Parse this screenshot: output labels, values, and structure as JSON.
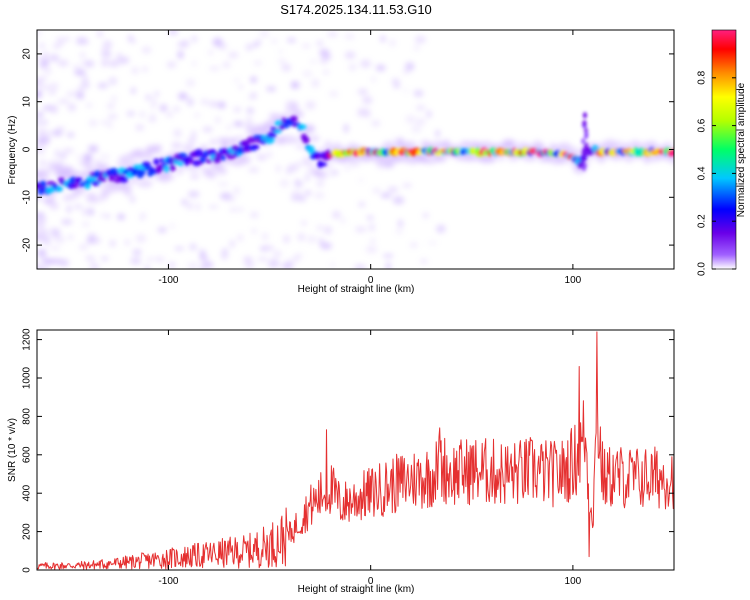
{
  "title": "S174.2025.134.11.53.G10",
  "colors": {
    "line": "#e53030",
    "axis": "#000000",
    "colormap": [
      "#ffffff",
      "#7f00ff",
      "#0000ff",
      "#00c8ff",
      "#00ff66",
      "#b4ff00",
      "#ffff00",
      "#ff8c00",
      "#ff0000",
      "#ff1f7f"
    ]
  },
  "chart_data": [
    {
      "type": "heatmap",
      "xlabel": "Height of straight line (km)",
      "ylabel": "Frequency (Hz)",
      "xlim": [
        -165,
        150
      ],
      "ylim": [
        -25,
        25
      ],
      "xticks": [
        -100,
        0,
        100
      ],
      "yticks": [
        -20,
        -10,
        0,
        10,
        20
      ],
      "colorbar": {
        "label": "Normalized spectral amplitude",
        "range": [
          0,
          1
        ],
        "ticks": [
          0.0,
          0.2,
          0.4,
          0.6,
          0.8
        ]
      },
      "ridge": {
        "x": [
          -165,
          -150,
          -130,
          -110,
          -90,
          -70,
          -60,
          -50,
          -45,
          -40,
          -35,
          -32,
          -28,
          -25,
          -20,
          -10,
          0,
          20,
          50,
          80,
          95,
          100,
          104,
          106,
          110,
          115,
          130,
          150
        ],
        "y": [
          -8,
          -7,
          -6,
          -4,
          -2,
          -1,
          1,
          3,
          5,
          6,
          5,
          2,
          -1,
          -3,
          -1,
          -0.5,
          -0.5,
          -0.5,
          -0.5,
          -0.5,
          -1,
          -1.5,
          -3,
          -1,
          0,
          -0.5,
          -0.5,
          -0.5
        ]
      }
    },
    {
      "type": "line",
      "xlabel": "Height of straight line (km)",
      "ylabel": "SNR (10 * v/v)",
      "xlim": [
        -165,
        150
      ],
      "ylim": [
        0,
        1250
      ],
      "xticks": [
        -100,
        0,
        100
      ],
      "yticks": [
        0,
        200,
        400,
        600,
        800,
        1000,
        1200
      ],
      "series": [
        {
          "values_x": [
            -165,
            -140,
            -120,
            -100,
            -80,
            -60,
            -50,
            -40,
            -35,
            -30,
            -25,
            -22,
            -20,
            -15,
            -10,
            0,
            10,
            20,
            30,
            35,
            40,
            50,
            60,
            70,
            80,
            90,
            95,
            100,
            103,
            106,
            108,
            110,
            112,
            115,
            120,
            130,
            140,
            150
          ],
          "values_y": [
            20,
            25,
            40,
            60,
            80,
            100,
            130,
            180,
            260,
            330,
            380,
            420,
            430,
            340,
            360,
            400,
            440,
            470,
            490,
            540,
            500,
            520,
            510,
            500,
            520,
            500,
            510,
            560,
            600,
            720,
            380,
            300,
            800,
            470,
            490,
            480,
            480,
            490
          ]
        }
      ],
      "spikes": [
        {
          "x": -22,
          "y": 730
        },
        {
          "x": 34,
          "y": 740
        },
        {
          "x": 103,
          "y": 1060
        },
        {
          "x": 108,
          "y": 70
        },
        {
          "x": 112,
          "y": 1240
        }
      ]
    }
  ]
}
